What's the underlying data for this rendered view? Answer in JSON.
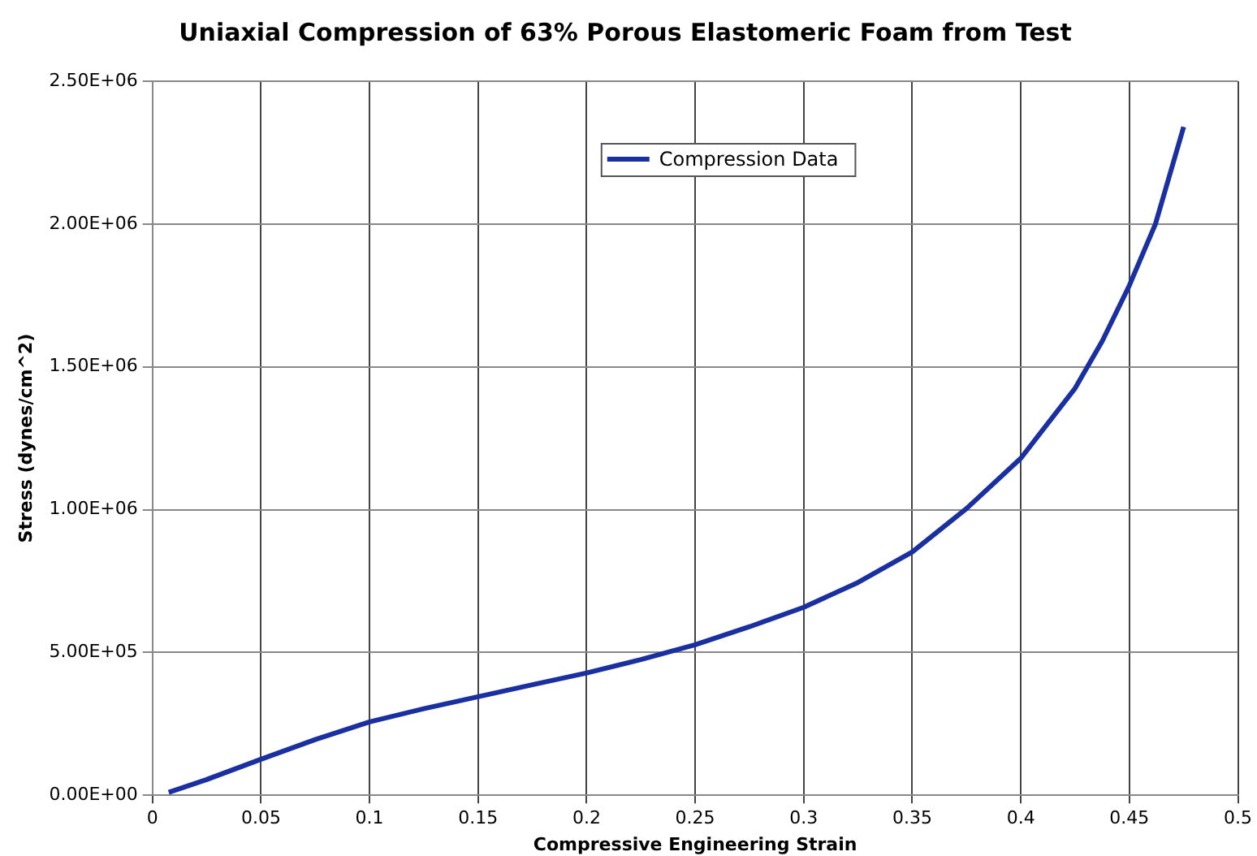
{
  "chart_data": {
    "type": "line",
    "title": "Uniaxial Compression of 63% Porous Elastomeric Foam from Test",
    "xlabel": "Compressive Engineering Strain",
    "ylabel": "Stress (dynes/cm^2)",
    "x": [
      0.0075,
      0.025,
      0.05,
      0.075,
      0.1,
      0.125,
      0.15,
      0.175,
      0.2,
      0.225,
      0.25,
      0.275,
      0.3,
      0.325,
      0.35,
      0.375,
      0.4,
      0.425,
      0.4375,
      0.45,
      0.462,
      0.475
    ],
    "series": [
      {
        "name": "Compression Data",
        "color": "#1a2fa0",
        "values": [
          10000,
          55000,
          126000,
          195000,
          257000,
          303000,
          345000,
          387000,
          428000,
          475000,
          527000,
          590000,
          658000,
          745000,
          852000,
          1004000,
          1180000,
          1425000,
          1590000,
          1785000,
          2000000,
          2340000
        ]
      }
    ],
    "xlim": [
      0,
      0.5
    ],
    "xticks": [
      0,
      0.05,
      0.1,
      0.15,
      0.2,
      0.25,
      0.3,
      0.35,
      0.4,
      0.45,
      0.5
    ],
    "ylim": [
      0,
      2500000
    ],
    "yticks": [
      {
        "value": 0,
        "label": "0.00E+00"
      },
      {
        "value": 500000,
        "label": "5.00E+05"
      },
      {
        "value": 1000000,
        "label": "1.00E+06"
      },
      {
        "value": 1500000,
        "label": "1.50E+06"
      },
      {
        "value": 2000000,
        "label": "2.00E+06"
      },
      {
        "value": 2500000,
        "label": "2.50E+06"
      }
    ],
    "grid": true,
    "legend": "top",
    "marker": "none",
    "line_style": "solid"
  }
}
